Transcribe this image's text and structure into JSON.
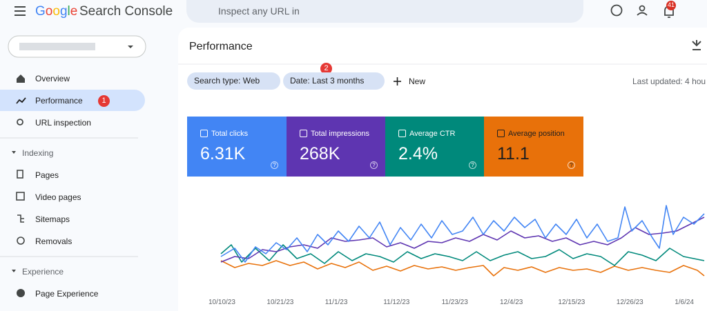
{
  "header": {
    "logo": "Google",
    "app_name": "Search Console",
    "search_placeholder": "Inspect any URL in",
    "notification_count": "41"
  },
  "sidebar": {
    "items": [
      "Overview",
      "Performance",
      "URL inspection"
    ],
    "sections": [
      {
        "title": "Indexing",
        "items": [
          "Pages",
          "Video pages",
          "Sitemaps",
          "Removals"
        ]
      },
      {
        "title": "Experience",
        "items": [
          "Page Experience"
        ]
      }
    ]
  },
  "badges": [
    "1",
    "2"
  ],
  "main": {
    "title": "Performance",
    "filters": [
      "Search type: Web",
      "Date: Last 3 months"
    ],
    "new_button": "New",
    "last_updated": "Last updated: 4 hou",
    "metrics": [
      {
        "label": "Total clicks",
        "value": "6.31K"
      },
      {
        "label": "Total impressions",
        "value": "268K"
      },
      {
        "label": "Average CTR",
        "value": "2.4%"
      },
      {
        "label": "Average position",
        "value": "11.1"
      }
    ],
    "chart_dates": [
      "10/10/23",
      "10/21/23",
      "11/1/23",
      "11/12/23",
      "11/23/23",
      "12/4/23",
      "12/15/23",
      "12/26/23",
      "1/6/24"
    ]
  }
}
